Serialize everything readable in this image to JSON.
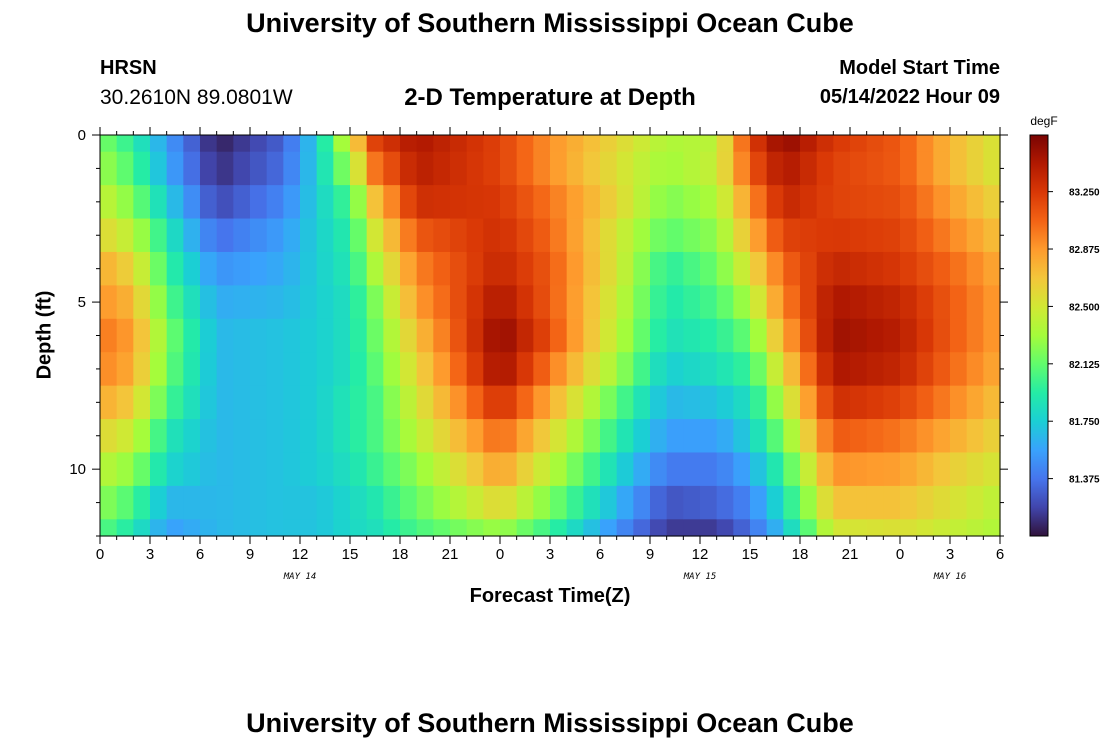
{
  "header": {
    "title": "University of Southern Mississippi Ocean Cube",
    "station": "HRSN",
    "coords": "30.2610N  89.0801W",
    "subtitle": "2-D Temperature at Depth",
    "model_start_label": "Model Start Time",
    "model_start_value": "05/14/2022 Hour 09"
  },
  "footer": {
    "title": "University of Southern Mississippi Ocean Cube"
  },
  "colors": {
    "scale": [
      "#30123b",
      "#4145ab",
      "#4675ed",
      "#39a2fc",
      "#1bcfd4",
      "#24eca6",
      "#61fc6c",
      "#a4fc3b",
      "#d1e834",
      "#f3c63a",
      "#fe9b2d",
      "#f36315",
      "#d93806",
      "#b11901",
      "#7a0403"
    ]
  },
  "chart_data": {
    "type": "heatmap",
    "title": "2-D Temperature at Depth",
    "xlabel": "Forecast Time(Z)",
    "ylabel": "Depth (ft)",
    "unit": "degF",
    "x_start_hour": 0,
    "x_step_hours": 1,
    "x_ticks": [
      "0",
      "3",
      "6",
      "9",
      "12",
      "15",
      "18",
      "21",
      "0",
      "3",
      "6",
      "9",
      "12",
      "15",
      "18",
      "21",
      "0",
      "3",
      "6"
    ],
    "day_labels": [
      {
        "text": "MAY 14",
        "hour": 12
      },
      {
        "text": "MAY 15",
        "hour": 36
      },
      {
        "text": "MAY 16",
        "hour": 51
      }
    ],
    "depths": [
      0,
      1,
      2,
      3,
      4,
      5,
      6,
      7,
      8,
      9,
      10,
      11,
      12
    ],
    "y_ticks": [
      "0",
      "5",
      "10"
    ],
    "ylim": [
      0,
      12
    ],
    "colorbar": {
      "min": 81.0,
      "max": 83.62,
      "ticks": [
        "83.250",
        "82.875",
        "82.500",
        "82.125",
        "81.750",
        "81.375"
      ],
      "tick_values": [
        83.25,
        82.875,
        82.5,
        82.125,
        81.75,
        81.375
      ]
    },
    "temperature_profiles": [
      {
        "hour": 0,
        "values": [
          82.2,
          82.3,
          82.45,
          82.6,
          82.8,
          82.9,
          83.0,
          82.95,
          82.8,
          82.6,
          82.4,
          82.25,
          82.1
        ]
      },
      {
        "hour": 2,
        "values": [
          81.95,
          82.05,
          82.2,
          82.4,
          82.6,
          82.75,
          82.85,
          82.8,
          82.65,
          82.45,
          82.25,
          82.05,
          81.9
        ]
      },
      {
        "hour": 4,
        "values": [
          81.55,
          81.6,
          81.75,
          81.9,
          82.0,
          82.1,
          82.2,
          82.15,
          82.05,
          81.9,
          81.8,
          81.65,
          81.55
        ]
      },
      {
        "hour": 7,
        "values": [
          81.05,
          81.1,
          81.2,
          81.35,
          81.5,
          81.6,
          81.65,
          81.65,
          81.65,
          81.65,
          81.65,
          81.65,
          81.65
        ]
      },
      {
        "hour": 11,
        "values": [
          81.3,
          81.35,
          81.45,
          81.55,
          81.6,
          81.65,
          81.7,
          81.7,
          81.7,
          81.7,
          81.7,
          81.7,
          81.7
        ]
      },
      {
        "hour": 13,
        "values": [
          81.75,
          81.75,
          81.75,
          81.75,
          81.75,
          81.75,
          81.75,
          81.75,
          81.75,
          81.75,
          81.75,
          81.7,
          81.7
        ]
      },
      {
        "hour": 15,
        "values": [
          82.5,
          82.3,
          82.05,
          81.95,
          81.9,
          81.85,
          81.85,
          81.85,
          81.9,
          81.9,
          81.85,
          81.8,
          81.8
        ]
      },
      {
        "hour": 16.5,
        "values": [
          83.2,
          83.0,
          82.7,
          82.5,
          82.35,
          82.2,
          82.15,
          82.1,
          82.05,
          82.05,
          82.0,
          81.9,
          81.85
        ]
      },
      {
        "hour": 19,
        "values": [
          83.45,
          83.4,
          83.3,
          83.1,
          82.95,
          82.85,
          82.7,
          82.6,
          82.5,
          82.4,
          82.25,
          82.15,
          82.05
        ]
      },
      {
        "hour": 24,
        "values": [
          83.2,
          83.2,
          83.25,
          83.3,
          83.35,
          83.45,
          83.55,
          83.5,
          83.3,
          83.05,
          82.85,
          82.6,
          82.3
        ]
      },
      {
        "hour": 27,
        "values": [
          82.9,
          82.9,
          83.0,
          83.05,
          83.1,
          83.1,
          83.15,
          83.0,
          82.8,
          82.6,
          82.4,
          82.2,
          82.0
        ]
      },
      {
        "hour": 31,
        "values": [
          82.6,
          82.55,
          82.6,
          82.5,
          82.5,
          82.45,
          82.4,
          82.3,
          82.1,
          81.95,
          81.8,
          81.65,
          81.5
        ]
      },
      {
        "hour": 34,
        "values": [
          82.35,
          82.3,
          82.2,
          82.1,
          81.95,
          81.9,
          81.85,
          81.75,
          81.65,
          81.55,
          81.4,
          81.25,
          81.15
        ]
      },
      {
        "hour": 37,
        "values": [
          82.4,
          82.45,
          82.35,
          82.25,
          82.15,
          82.05,
          81.95,
          81.85,
          81.7,
          81.55,
          81.4,
          81.3,
          81.15
        ]
      },
      {
        "hour": 39,
        "values": [
          83.2,
          83.1,
          82.9,
          82.75,
          82.55,
          82.35,
          82.15,
          82.0,
          81.85,
          81.75,
          81.6,
          81.45,
          81.35
        ]
      },
      {
        "hour": 41,
        "values": [
          83.55,
          83.45,
          83.35,
          83.2,
          83.05,
          82.95,
          82.8,
          82.6,
          82.4,
          82.2,
          82.0,
          81.85,
          81.7
        ]
      },
      {
        "hour": 44,
        "values": [
          83.25,
          83.2,
          83.2,
          83.25,
          83.35,
          83.45,
          83.5,
          83.45,
          83.3,
          83.1,
          82.9,
          82.7,
          82.5
        ]
      },
      {
        "hour": 48,
        "values": [
          83.1,
          83.1,
          83.15,
          83.2,
          83.25,
          83.35,
          83.4,
          83.35,
          83.2,
          83.0,
          82.85,
          82.7,
          82.55
        ]
      },
      {
        "hour": 51,
        "values": [
          82.75,
          82.75,
          82.85,
          82.95,
          83.05,
          83.1,
          83.1,
          83.05,
          82.95,
          82.8,
          82.65,
          82.55,
          82.45
        ]
      },
      {
        "hour": 54,
        "values": [
          82.5,
          82.5,
          82.6,
          82.7,
          82.8,
          82.85,
          82.85,
          82.8,
          82.7,
          82.6,
          82.5,
          82.4,
          82.35
        ]
      }
    ]
  }
}
